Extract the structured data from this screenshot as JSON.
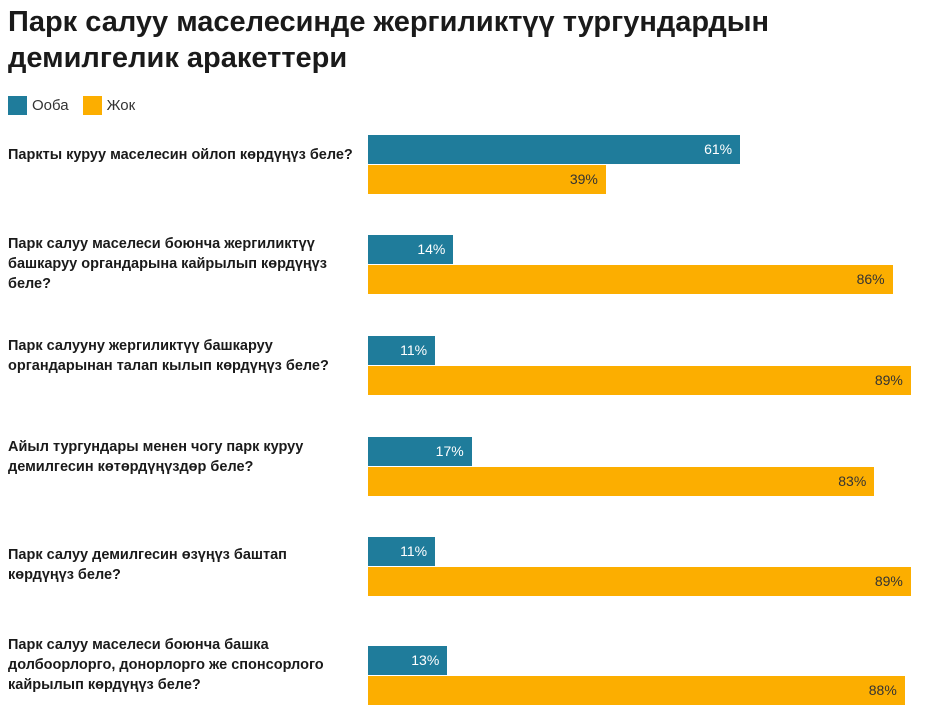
{
  "chart_data": {
    "type": "bar",
    "orientation": "horizontal",
    "title": "Парк салуу маселесинде жергиликтүү тургундардын демилгелик аракеттери",
    "xlim": [
      0,
      100
    ],
    "grid": false,
    "legend_position": "top-left",
    "categories": [
      "Паркты куруу маселесин ойлоп көрдүңүз беле?",
      "Парк салуу маселеси боюнча жергиликтүү башкаруу органдарына кайрылып көрдүңүз беле?",
      "Парк салууну жергиликтүү башкаруу органдарынан талап кылып көрдүңүз беле?",
      "Айыл тургундары менен чогу парк куруу демилгесин көтөрдүңүздөр беле?",
      "Парк салуу демилгесин өзүңүз баштап көрдүңүз беле?",
      "Парк салуу маселеси боюнча башка долбоорлорго, донорлорго же спонсорлого кайрылып көрдүңүз беле?"
    ],
    "series": [
      {
        "name": "Ооба",
        "color": "#1f7c9b",
        "label_color": "#ffffff",
        "values": [
          61,
          14,
          11,
          17,
          11,
          13
        ],
        "labels": [
          "61%",
          "14%",
          "11%",
          "17%",
          "11%",
          "13%"
        ]
      },
      {
        "name": "Жок",
        "color": "#fcae00",
        "label_color": "#333333",
        "values": [
          39,
          86,
          89,
          83,
          89,
          88
        ],
        "labels": [
          "39%",
          "86%",
          "89%",
          "83%",
          "89%",
          "88%"
        ]
      }
    ]
  }
}
